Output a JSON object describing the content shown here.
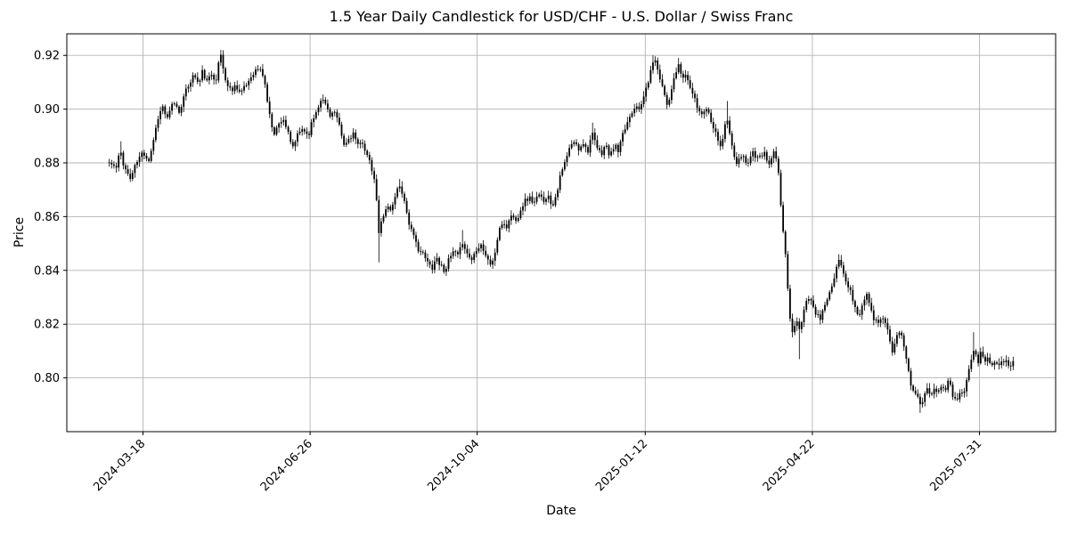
{
  "chart_data": {
    "type": "candlestick",
    "title": "1.5 Year Daily Candlestick for USD/CHF - U.S. Dollar / Swiss Franc",
    "xlabel": "Date",
    "ylabel": "Price",
    "ylim": [
      0.78,
      0.928
    ],
    "y_ticks": [
      0.8,
      0.82,
      0.84,
      0.86,
      0.88,
      0.9,
      0.92
    ],
    "x_ticks": [
      {
        "label": "2024-03-18",
        "pos": 0.077
      },
      {
        "label": "2024-06-26",
        "pos": 0.246
      },
      {
        "label": "2024-10-04",
        "pos": 0.415
      },
      {
        "label": "2025-01-12",
        "pos": 0.585
      },
      {
        "label": "2025-04-22",
        "pos": 0.754
      },
      {
        "label": "2025-07-31",
        "pos": 0.923
      }
    ],
    "grid": true,
    "legend": "none",
    "n_candles": 390,
    "x_data_margin": 0.043,
    "seed": 11,
    "colors": {
      "candle": "#000000",
      "grid": "#b4b4b4",
      "background": "#ffffff",
      "text": "#000000"
    },
    "volatility": {
      "close_jitter": 0.001,
      "wick_min": 0.0005,
      "wick_rand": 0.0015
    },
    "keypoints": [
      [
        0.0,
        0.88
      ],
      [
        0.008,
        0.878
      ],
      [
        0.012,
        0.885
      ],
      [
        0.016,
        0.879
      ],
      [
        0.023,
        0.874
      ],
      [
        0.03,
        0.88
      ],
      [
        0.037,
        0.884
      ],
      [
        0.044,
        0.881
      ],
      [
        0.049,
        0.889
      ],
      [
        0.054,
        0.897
      ],
      [
        0.059,
        0.901
      ],
      [
        0.064,
        0.896
      ],
      [
        0.071,
        0.903
      ],
      [
        0.077,
        0.899
      ],
      [
        0.084,
        0.906
      ],
      [
        0.089,
        0.91
      ],
      [
        0.094,
        0.913
      ],
      [
        0.099,
        0.909
      ],
      [
        0.103,
        0.914
      ],
      [
        0.108,
        0.91
      ],
      [
        0.113,
        0.913
      ],
      [
        0.118,
        0.911
      ],
      [
        0.123,
        0.921
      ],
      [
        0.126,
        0.915
      ],
      [
        0.13,
        0.909
      ],
      [
        0.135,
        0.907
      ],
      [
        0.14,
        0.909
      ],
      [
        0.145,
        0.906
      ],
      [
        0.15,
        0.908
      ],
      [
        0.155,
        0.911
      ],
      [
        0.16,
        0.914
      ],
      [
        0.166,
        0.915
      ],
      [
        0.171,
        0.912
      ],
      [
        0.177,
        0.898
      ],
      [
        0.182,
        0.891
      ],
      [
        0.187,
        0.894
      ],
      [
        0.192,
        0.897
      ],
      [
        0.197,
        0.892
      ],
      [
        0.202,
        0.885
      ],
      [
        0.208,
        0.89
      ],
      [
        0.214,
        0.893
      ],
      [
        0.22,
        0.89
      ],
      [
        0.225,
        0.896
      ],
      [
        0.23,
        0.9
      ],
      [
        0.234,
        0.904
      ],
      [
        0.239,
        0.902
      ],
      [
        0.244,
        0.898
      ],
      [
        0.249,
        0.899
      ],
      [
        0.254,
        0.894
      ],
      [
        0.26,
        0.886
      ],
      [
        0.265,
        0.889
      ],
      [
        0.27,
        0.891
      ],
      [
        0.275,
        0.886
      ],
      [
        0.28,
        0.888
      ],
      [
        0.285,
        0.883
      ],
      [
        0.29,
        0.878
      ],
      [
        0.295,
        0.87
      ],
      [
        0.298,
        0.853
      ],
      [
        0.302,
        0.86
      ],
      [
        0.307,
        0.864
      ],
      [
        0.312,
        0.862
      ],
      [
        0.317,
        0.869
      ],
      [
        0.322,
        0.872
      ],
      [
        0.327,
        0.865
      ],
      [
        0.332,
        0.857
      ],
      [
        0.337,
        0.852
      ],
      [
        0.342,
        0.848
      ],
      [
        0.347,
        0.846
      ],
      [
        0.352,
        0.843
      ],
      [
        0.357,
        0.841
      ],
      [
        0.362,
        0.845
      ],
      [
        0.366,
        0.842
      ],
      [
        0.371,
        0.84
      ],
      [
        0.376,
        0.844
      ],
      [
        0.381,
        0.847
      ],
      [
        0.386,
        0.845
      ],
      [
        0.391,
        0.851
      ],
      [
        0.396,
        0.846
      ],
      [
        0.401,
        0.844
      ],
      [
        0.406,
        0.848
      ],
      [
        0.411,
        0.85
      ],
      [
        0.416,
        0.846
      ],
      [
        0.421,
        0.842
      ],
      [
        0.426,
        0.845
      ],
      [
        0.43,
        0.853
      ],
      [
        0.435,
        0.858
      ],
      [
        0.44,
        0.856
      ],
      [
        0.445,
        0.861
      ],
      [
        0.45,
        0.858
      ],
      [
        0.455,
        0.863
      ],
      [
        0.46,
        0.866
      ],
      [
        0.465,
        0.867
      ],
      [
        0.47,
        0.865
      ],
      [
        0.475,
        0.868
      ],
      [
        0.48,
        0.866
      ],
      [
        0.485,
        0.868
      ],
      [
        0.49,
        0.864
      ],
      [
        0.495,
        0.869
      ],
      [
        0.499,
        0.875
      ],
      [
        0.504,
        0.88
      ],
      [
        0.509,
        0.885
      ],
      [
        0.514,
        0.888
      ],
      [
        0.519,
        0.885
      ],
      [
        0.524,
        0.888
      ],
      [
        0.529,
        0.884
      ],
      [
        0.534,
        0.891
      ],
      [
        0.539,
        0.886
      ],
      [
        0.544,
        0.883
      ],
      [
        0.549,
        0.887
      ],
      [
        0.554,
        0.882
      ],
      [
        0.559,
        0.887
      ],
      [
        0.563,
        0.884
      ],
      [
        0.568,
        0.89
      ],
      [
        0.573,
        0.895
      ],
      [
        0.578,
        0.899
      ],
      [
        0.583,
        0.902
      ],
      [
        0.588,
        0.9
      ],
      [
        0.593,
        0.907
      ],
      [
        0.598,
        0.912
      ],
      [
        0.602,
        0.919
      ],
      [
        0.606,
        0.916
      ],
      [
        0.61,
        0.911
      ],
      [
        0.614,
        0.906
      ],
      [
        0.618,
        0.901
      ],
      [
        0.622,
        0.908
      ],
      [
        0.626,
        0.912
      ],
      [
        0.63,
        0.917
      ],
      [
        0.633,
        0.911
      ],
      [
        0.637,
        0.913
      ],
      [
        0.641,
        0.91
      ],
      [
        0.645,
        0.906
      ],
      [
        0.65,
        0.901
      ],
      [
        0.655,
        0.898
      ],
      [
        0.66,
        0.901
      ],
      [
        0.665,
        0.897
      ],
      [
        0.671,
        0.891
      ],
      [
        0.677,
        0.886
      ],
      [
        0.683,
        0.897
      ],
      [
        0.689,
        0.886
      ],
      [
        0.694,
        0.879
      ],
      [
        0.7,
        0.883
      ],
      [
        0.706,
        0.88
      ],
      [
        0.712,
        0.884
      ],
      [
        0.718,
        0.881
      ],
      [
        0.724,
        0.884
      ],
      [
        0.73,
        0.879
      ],
      [
        0.735,
        0.884
      ],
      [
        0.74,
        0.878
      ],
      [
        0.744,
        0.86
      ],
      [
        0.748,
        0.846
      ],
      [
        0.752,
        0.826
      ],
      [
        0.756,
        0.816
      ],
      [
        0.76,
        0.823
      ],
      [
        0.763,
        0.817
      ],
      [
        0.767,
        0.822
      ],
      [
        0.771,
        0.828
      ],
      [
        0.775,
        0.831
      ],
      [
        0.779,
        0.827
      ],
      [
        0.783,
        0.823
      ],
      [
        0.787,
        0.822
      ],
      [
        0.791,
        0.827
      ],
      [
        0.795,
        0.83
      ],
      [
        0.799,
        0.833
      ],
      [
        0.803,
        0.838
      ],
      [
        0.807,
        0.844
      ],
      [
        0.811,
        0.84
      ],
      [
        0.815,
        0.836
      ],
      [
        0.819,
        0.833
      ],
      [
        0.823,
        0.829
      ],
      [
        0.827,
        0.824
      ],
      [
        0.831,
        0.823
      ],
      [
        0.834,
        0.829
      ],
      [
        0.838,
        0.831
      ],
      [
        0.842,
        0.827
      ],
      [
        0.846,
        0.822
      ],
      [
        0.85,
        0.82
      ],
      [
        0.854,
        0.823
      ],
      [
        0.858,
        0.821
      ],
      [
        0.862,
        0.818
      ],
      [
        0.866,
        0.81
      ],
      [
        0.87,
        0.814
      ],
      [
        0.874,
        0.817
      ],
      [
        0.878,
        0.814
      ],
      [
        0.882,
        0.807
      ],
      [
        0.886,
        0.799
      ],
      [
        0.89,
        0.795
      ],
      [
        0.894,
        0.793
      ],
      [
        0.898,
        0.789
      ],
      [
        0.901,
        0.792
      ],
      [
        0.905,
        0.796
      ],
      [
        0.909,
        0.794
      ],
      [
        0.913,
        0.797
      ],
      [
        0.917,
        0.794
      ],
      [
        0.921,
        0.798
      ],
      [
        0.925,
        0.796
      ],
      [
        0.929,
        0.799
      ],
      [
        0.933,
        0.794
      ],
      [
        0.937,
        0.792
      ],
      [
        0.941,
        0.795
      ],
      [
        0.945,
        0.793
      ],
      [
        0.949,
        0.801
      ],
      [
        0.953,
        0.807
      ],
      [
        0.957,
        0.811
      ],
      [
        0.961,
        0.806
      ],
      [
        0.964,
        0.809
      ],
      [
        0.968,
        0.806
      ],
      [
        0.972,
        0.808
      ],
      [
        0.976,
        0.805
      ],
      [
        0.98,
        0.807
      ],
      [
        0.984,
        0.804
      ],
      [
        0.988,
        0.806
      ],
      [
        0.992,
        0.806
      ],
      [
        0.996,
        0.804
      ],
      [
        1.0,
        0.806
      ]
    ],
    "wick_spikes": [
      {
        "t": 0.012,
        "high": 0.888
      },
      {
        "t": 0.123,
        "high": 0.922
      },
      {
        "t": 0.298,
        "low": 0.843
      },
      {
        "t": 0.322,
        "high": 0.874
      },
      {
        "t": 0.391,
        "high": 0.855
      },
      {
        "t": 0.534,
        "high": 0.895
      },
      {
        "t": 0.602,
        "high": 0.92
      },
      {
        "t": 0.63,
        "high": 0.919
      },
      {
        "t": 0.683,
        "high": 0.903
      },
      {
        "t": 0.763,
        "low": 0.807
      },
      {
        "t": 0.807,
        "high": 0.846
      },
      {
        "t": 0.898,
        "low": 0.787
      },
      {
        "t": 0.957,
        "high": 0.817
      }
    ]
  }
}
